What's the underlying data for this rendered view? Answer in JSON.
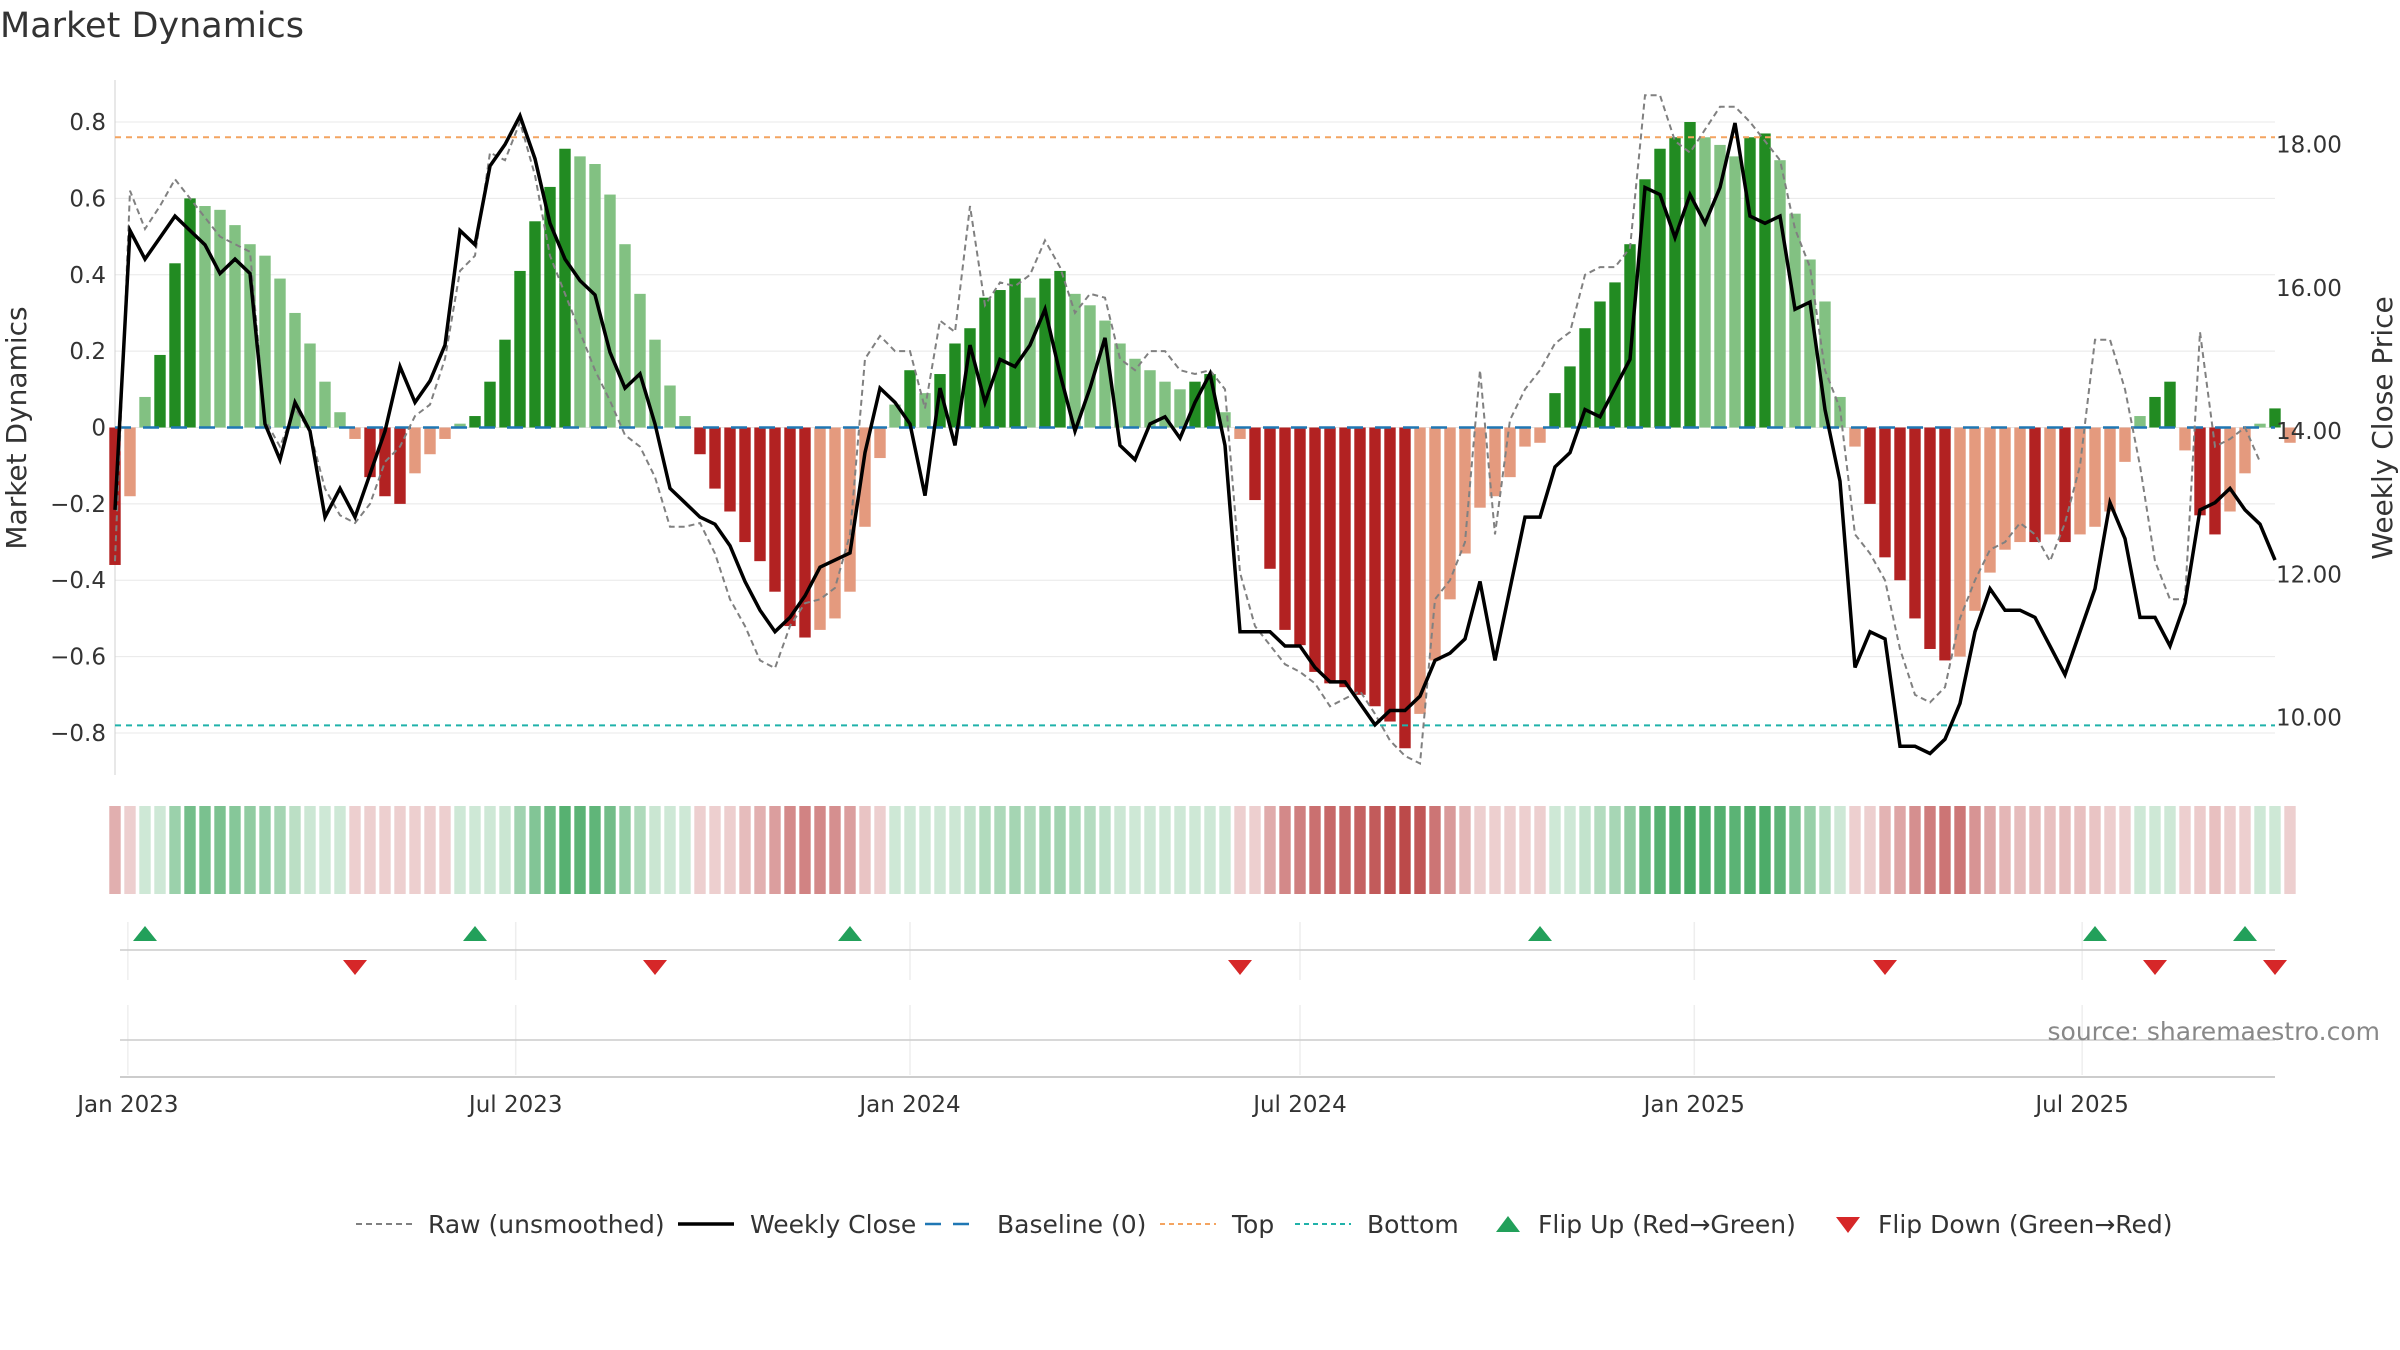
{
  "chart_data": {
    "title": "Market Dynamics",
    "type": "bar",
    "left_axis": {
      "label": "Market Dynamics",
      "range": [
        -0.91,
        0.91
      ],
      "ticks": [
        0.8,
        0.6,
        0.4,
        0.2,
        0,
        -0.2,
        -0.4,
        -0.6,
        -0.8
      ],
      "tick_labels": [
        "0.8",
        "0.6",
        "0.4",
        "0.2",
        "0",
        "−0.2",
        "−0.4",
        "−0.6",
        "−0.8"
      ]
    },
    "right_axis": {
      "label": "Weekly Close Price",
      "range": [
        9.2,
        18.9
      ],
      "ticks": [
        18,
        16,
        14,
        12,
        10
      ],
      "tick_labels": [
        "18.00",
        "16.00",
        "14.00",
        "12.00",
        "10.00"
      ]
    },
    "x_axis": {
      "start": "2022-12-26",
      "end": "2025-09-29",
      "ticks": [
        "2023-01-01",
        "2023-07-01",
        "2024-01-01",
        "2024-07-01",
        "2025-01-01",
        "2025-07-01"
      ],
      "tick_labels": [
        "Jan 2023",
        "Jul 2023",
        "Jan 2024",
        "Jul 2024",
        "Jan 2025",
        "Jul 2025"
      ]
    },
    "reference_lines": {
      "top": 0.76,
      "bottom": -0.78,
      "baseline": 0
    },
    "colors": {
      "strong_green": "#228b22",
      "light_green": "#82c182",
      "strong_red": "#b22222",
      "light_red": "#e49a7e",
      "top_line": "#f4a460",
      "bottom_line": "#20b2aa",
      "baseline": "#1f77b4",
      "raw_line": "#808080",
      "close_line": "#000000",
      "flip_up": "#22a05a",
      "flip_down": "#d62728"
    },
    "bars": [
      -0.36,
      -0.18,
      0.08,
      0.19,
      0.43,
      0.6,
      0.58,
      0.57,
      0.53,
      0.48,
      0.45,
      0.39,
      0.3,
      0.22,
      0.12,
      0.04,
      -0.03,
      -0.13,
      -0.18,
      -0.2,
      -0.12,
      -0.07,
      -0.03,
      0.01,
      0.03,
      0.12,
      0.23,
      0.41,
      0.54,
      0.63,
      0.73,
      0.71,
      0.69,
      0.61,
      0.48,
      0.35,
      0.23,
      0.11,
      0.03,
      -0.07,
      -0.16,
      -0.22,
      -0.3,
      -0.35,
      -0.43,
      -0.52,
      -0.55,
      -0.53,
      -0.5,
      -0.43,
      -0.26,
      -0.08,
      0.06,
      0.15,
      0.09,
      0.14,
      0.22,
      0.26,
      0.34,
      0.36,
      0.39,
      0.34,
      0.39,
      0.41,
      0.35,
      0.32,
      0.28,
      0.22,
      0.18,
      0.15,
      0.12,
      0.1,
      0.12,
      0.14,
      0.04,
      -0.03,
      -0.19,
      -0.37,
      -0.53,
      -0.57,
      -0.64,
      -0.67,
      -0.68,
      -0.7,
      -0.73,
      -0.77,
      -0.84,
      -0.75,
      -0.61,
      -0.45,
      -0.33,
      -0.21,
      -0.18,
      -0.13,
      -0.05,
      -0.04,
      0.09,
      0.16,
      0.26,
      0.33,
      0.38,
      0.48,
      0.65,
      0.73,
      0.76,
      0.8,
      0.76,
      0.74,
      0.71,
      0.76,
      0.77,
      0.7,
      0.56,
      0.44,
      0.33,
      0.08,
      -0.05,
      -0.2,
      -0.34,
      -0.4,
      -0.5,
      -0.58,
      -0.61,
      -0.6,
      -0.48,
      -0.38,
      -0.32,
      -0.3,
      -0.3,
      -0.28,
      -0.3,
      -0.28,
      -0.26,
      -0.22,
      -0.09,
      0.03,
      0.08,
      0.12,
      -0.06,
      -0.23,
      -0.28,
      -0.22,
      -0.12,
      0.01,
      0.05,
      -0.04
    ],
    "weekly_close": [
      12.9,
      16.8,
      16.4,
      16.7,
      17.0,
      16.8,
      16.6,
      16.2,
      16.4,
      16.2,
      14.1,
      13.6,
      14.4,
      14.0,
      12.8,
      13.2,
      12.8,
      13.4,
      14.0,
      14.9,
      14.4,
      14.7,
      15.2,
      16.8,
      16.6,
      17.7,
      18.0,
      18.4,
      17.8,
      16.9,
      16.4,
      16.1,
      15.9,
      15.1,
      14.6,
      14.8,
      14.1,
      13.2,
      13.0,
      12.8,
      12.7,
      12.4,
      11.9,
      11.5,
      11.2,
      11.4,
      11.7,
      12.1,
      12.2,
      12.3,
      13.7,
      14.6,
      14.4,
      14.1,
      13.1,
      14.6,
      13.8,
      15.2,
      14.4,
      15.0,
      14.9,
      15.2,
      15.7,
      14.8,
      14.0,
      14.6,
      15.3,
      13.8,
      13.6,
      14.1,
      14.2,
      13.9,
      14.4,
      14.8,
      13.8,
      11.2,
      11.2,
      11.2,
      11.0,
      11.0,
      10.7,
      10.5,
      10.5,
      10.2,
      9.9,
      10.1,
      10.1,
      10.3,
      10.8,
      10.9,
      11.1,
      11.9,
      10.8,
      11.8,
      12.8,
      12.8,
      13.5,
      13.7,
      14.3,
      14.2,
      14.6,
      15.0,
      17.4,
      17.3,
      16.7,
      17.3,
      16.9,
      17.4,
      18.3,
      17.0,
      16.9,
      17.0,
      15.7,
      15.8,
      14.3,
      13.3,
      10.7,
      11.2,
      11.1,
      9.6,
      9.6,
      9.5,
      9.7,
      10.2,
      11.2,
      11.8,
      11.5,
      11.5,
      11.4,
      11.0,
      10.6,
      11.2,
      11.8,
      13.0,
      12.5,
      11.4,
      11.4,
      11.0,
      11.6,
      12.9,
      13.0,
      13.2,
      12.9,
      12.7,
      12.2
    ],
    "raw": [
      -0.35,
      0.62,
      0.52,
      0.58,
      0.65,
      0.6,
      0.55,
      0.5,
      0.48,
      0.46,
      0.02,
      -0.05,
      0.05,
      -0.01,
      -0.16,
      -0.23,
      -0.25,
      -0.2,
      -0.09,
      -0.05,
      0.03,
      0.06,
      0.18,
      0.41,
      0.45,
      0.72,
      0.7,
      0.8,
      0.66,
      0.45,
      0.35,
      0.25,
      0.15,
      0.07,
      -0.02,
      -0.05,
      -0.13,
      -0.26,
      -0.26,
      -0.25,
      -0.33,
      -0.45,
      -0.52,
      -0.61,
      -0.63,
      -0.52,
      -0.46,
      -0.45,
      -0.42,
      -0.28,
      0.18,
      0.24,
      0.2,
      0.2,
      0.05,
      0.28,
      0.25,
      0.58,
      0.32,
      0.38,
      0.37,
      0.4,
      0.49,
      0.42,
      0.3,
      0.35,
      0.34,
      0.18,
      0.15,
      0.2,
      0.2,
      0.15,
      0.14,
      0.15,
      0.1,
      -0.38,
      -0.52,
      -0.57,
      -0.62,
      -0.64,
      -0.67,
      -0.73,
      -0.71,
      -0.69,
      -0.75,
      -0.82,
      -0.86,
      -0.88,
      -0.45,
      -0.4,
      -0.3,
      0.15,
      -0.28,
      0.02,
      0.1,
      0.15,
      0.22,
      0.25,
      0.4,
      0.42,
      0.42,
      0.47,
      0.87,
      0.87,
      0.75,
      0.72,
      0.78,
      0.84,
      0.84,
      0.8,
      0.75,
      0.7,
      0.52,
      0.42,
      0.15,
      0.05,
      -0.28,
      -0.33,
      -0.4,
      -0.58,
      -0.7,
      -0.72,
      -0.68,
      -0.5,
      -0.4,
      -0.32,
      -0.3,
      -0.25,
      -0.28,
      -0.35,
      -0.25,
      -0.1,
      0.23,
      0.23,
      0.1,
      -0.1,
      -0.35,
      -0.45,
      -0.45,
      0.25,
      -0.05,
      -0.03,
      0.0,
      -0.09
    ],
    "flip_up": [
      "2023-01-09",
      "2023-06-12",
      "2023-12-04",
      "2024-10-21",
      "2025-07-07",
      "2025-09-15"
    ],
    "flip_down": [
      "2023-04-17",
      "2023-09-04",
      "2024-06-03",
      "2025-03-31",
      "2025-08-04",
      "2025-09-29"
    ]
  },
  "legend": [
    {
      "label": "Raw (unsmoothed)",
      "style": "dashed-gray",
      "icon": "dashed-line"
    },
    {
      "label": "Weekly Close",
      "style": "solid-black",
      "icon": "solid-line"
    },
    {
      "label": "Baseline (0)",
      "style": "dashed-blue",
      "icon": "dashed-line"
    },
    {
      "label": "Top",
      "style": "dotted-orange",
      "icon": "dotted-line"
    },
    {
      "label": "Bottom",
      "style": "dotted-teal",
      "icon": "dotted-line"
    },
    {
      "label": "Flip Up (Red→Green)",
      "style": "triangle-up-green",
      "icon": "triangle-up-icon"
    },
    {
      "label": "Flip Down (Green→Red)",
      "style": "triangle-down-red",
      "icon": "triangle-down-icon"
    }
  ],
  "source_text": "source: sharemaestro.com"
}
